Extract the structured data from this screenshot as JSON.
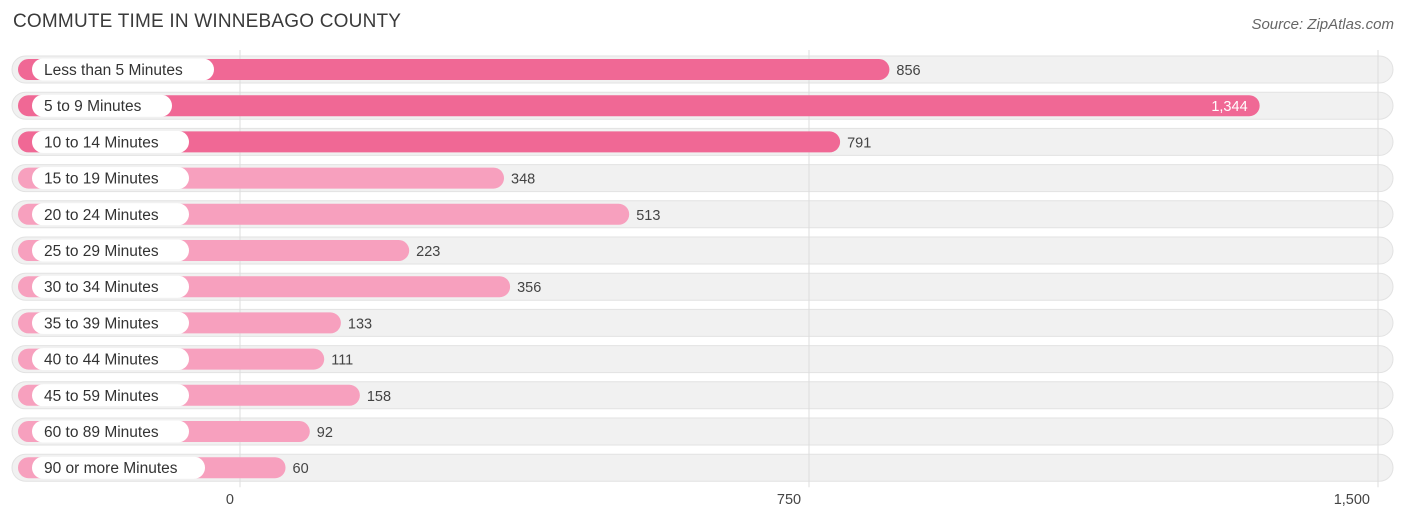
{
  "title": "COMMUTE TIME IN WINNEBAGO COUNTY",
  "source": "Source: ZipAtlas.com",
  "colors": {
    "bar_strong": "#f06895",
    "bar_light": "#f7a0be",
    "row_bg": "#f1f1f1",
    "row_border": "#e2e2e2",
    "grid": "#dddddd",
    "label_text": "#333333",
    "value_text": "#444444",
    "value_text_inside": "#ffffff"
  },
  "chart_data": {
    "type": "bar",
    "orientation": "horizontal",
    "title": "COMMUTE TIME IN WINNEBAGO COUNTY",
    "xlim": [
      0,
      1500
    ],
    "ticks": [
      0,
      750,
      1500
    ],
    "tick_labels": [
      "0",
      "750",
      "1,500"
    ],
    "grid": true,
    "categories": [
      "Less than 5 Minutes",
      "5 to 9 Minutes",
      "10 to 14 Minutes",
      "15 to 19 Minutes",
      "20 to 24 Minutes",
      "25 to 29 Minutes",
      "30 to 34 Minutes",
      "35 to 39 Minutes",
      "40 to 44 Minutes",
      "45 to 59 Minutes",
      "60 to 89 Minutes",
      "90 or more Minutes"
    ],
    "values": [
      856,
      1344,
      791,
      348,
      513,
      223,
      356,
      133,
      111,
      158,
      92,
      60
    ],
    "value_labels": [
      "856",
      "1,344",
      "791",
      "348",
      "513",
      "223",
      "356",
      "133",
      "111",
      "158",
      "92",
      "60"
    ]
  }
}
